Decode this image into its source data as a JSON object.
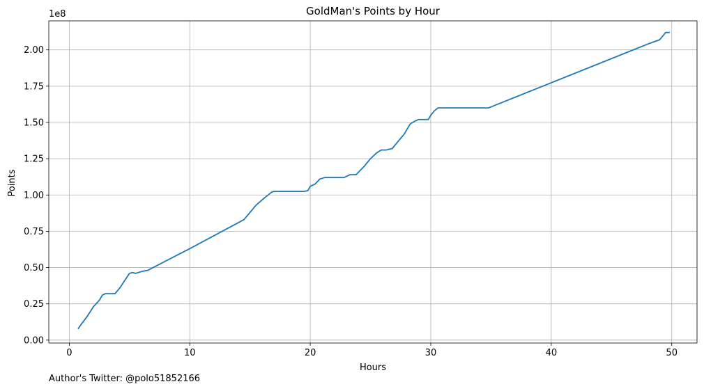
{
  "chart_data": {
    "type": "line",
    "title": "GoldMan's Points by Hour",
    "xlabel": "Hours",
    "ylabel": "Points",
    "y_offset_text": "1e8",
    "xlim": [
      -1.7,
      52.1
    ],
    "ylim": [
      -0.02,
      2.2
    ],
    "x_ticks": [
      0,
      10,
      20,
      30,
      40,
      50
    ],
    "x_tick_labels": [
      "0",
      "10",
      "20",
      "30",
      "40",
      "50"
    ],
    "y_ticks": [
      0,
      0.25,
      0.5,
      0.75,
      1.0,
      1.25,
      1.5,
      1.75,
      2.0
    ],
    "y_tick_labels": [
      "0.00",
      "0.25",
      "0.50",
      "0.75",
      "1.00",
      "1.25",
      "1.50",
      "1.75",
      "2.00"
    ],
    "grid": true,
    "series": [
      {
        "color": "#1f77b4",
        "x": [
          0.75,
          1.0,
          1.5,
          2.0,
          2.5,
          2.75,
          3.0,
          3.5,
          3.8,
          4.2,
          4.6,
          5.0,
          5.25,
          5.5,
          5.9,
          6.1,
          6.5,
          10.0,
          14.5,
          15.0,
          15.5,
          16.2,
          16.5,
          16.8,
          17.0,
          18.0,
          19.5,
          19.8,
          20.0,
          20.4,
          20.8,
          21.2,
          22.0,
          22.8,
          23.3,
          23.8,
          24.5,
          25.0,
          25.5,
          25.9,
          26.3,
          26.8,
          27.3,
          27.8,
          28.3,
          28.7,
          29.0,
          29.3,
          29.8,
          30.0,
          30.3,
          30.6,
          31.0,
          34.8,
          48.0,
          49.0,
          49.5,
          49.8
        ],
        "y": [
          0.08,
          0.11,
          0.165,
          0.23,
          0.275,
          0.31,
          0.32,
          0.32,
          0.32,
          0.36,
          0.41,
          0.46,
          0.465,
          0.46,
          0.47,
          0.475,
          0.48,
          0.63,
          0.83,
          0.88,
          0.93,
          0.98,
          1.0,
          1.02,
          1.025,
          1.025,
          1.025,
          1.03,
          1.06,
          1.075,
          1.11,
          1.12,
          1.12,
          1.12,
          1.14,
          1.14,
          1.2,
          1.25,
          1.29,
          1.31,
          1.31,
          1.32,
          1.37,
          1.42,
          1.49,
          1.51,
          1.52,
          1.52,
          1.52,
          1.55,
          1.58,
          1.6,
          1.6,
          1.6,
          2.04,
          2.07,
          2.12,
          2.12
        ]
      }
    ]
  },
  "footer": {
    "note": "Author's Twitter: @polo51852166"
  }
}
